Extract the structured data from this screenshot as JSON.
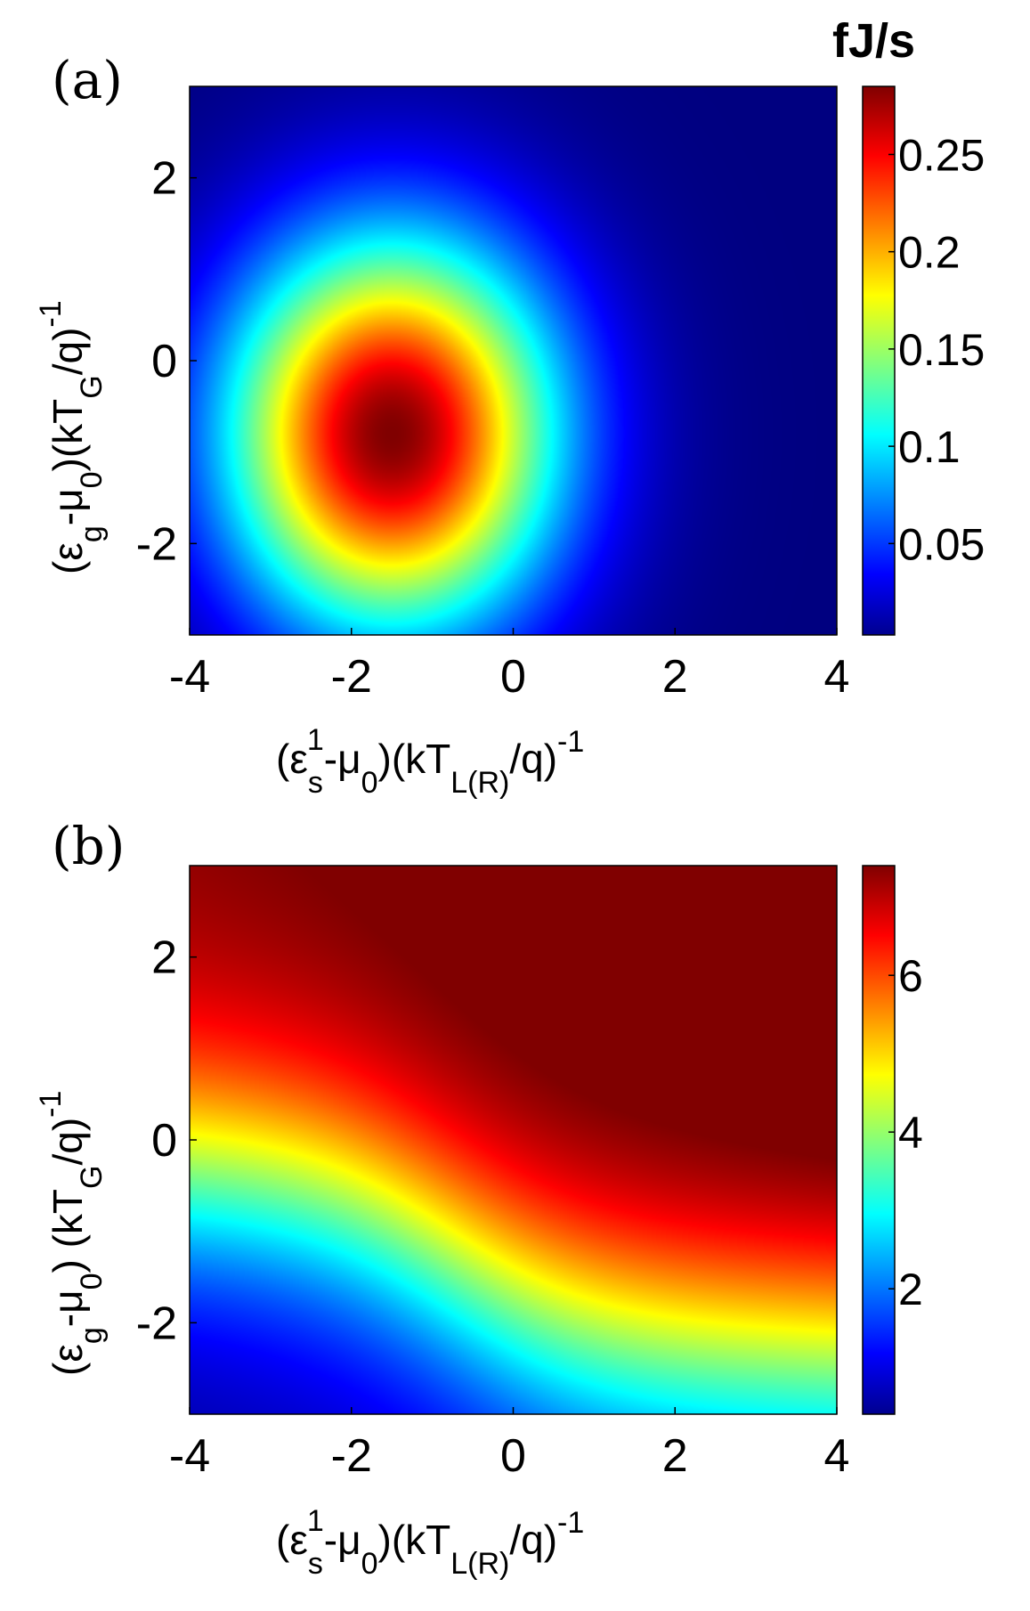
{
  "chart_data": [
    {
      "type": "heatmap",
      "panel_label": "(a)",
      "xlim": [
        -4,
        4
      ],
      "ylim": [
        -3,
        3
      ],
      "x_ticks": [
        -4,
        -2,
        0,
        2,
        4
      ],
      "x_tick_labels": [
        "-4",
        "-2",
        "0",
        "2",
        "4"
      ],
      "y_ticks": [
        2,
        0,
        -2
      ],
      "y_tick_labels": [
        "2",
        "0",
        "-2"
      ],
      "xlabel": "(εs1-μ0)(kTL(R)/q)-1",
      "ylabel": "(εg-μ0)(kTG/q)-1",
      "colorbar": {
        "unit": "fJ/s",
        "range": [
          0.003,
          0.285
        ],
        "ticks": [
          0.05,
          0.1,
          0.15,
          0.2,
          0.25
        ],
        "tick_labels": [
          "0.05",
          "0.1",
          "0.15",
          "0.2",
          "0.25"
        ]
      },
      "field": {
        "description_values": "peak 0.285 at (x=-1.5, y=-0.8), decaying radially to ~0.005 at far right",
        "peak_value": 0.285,
        "peak_x": -1.5,
        "peak_y": -0.8,
        "min_value": 0.003
      },
      "colormap": "jet",
      "grid": false
    },
    {
      "type": "heatmap",
      "panel_label": "(b)",
      "xlim": [
        -4,
        4
      ],
      "ylim": [
        -3,
        3
      ],
      "x_ticks": [
        -4,
        -2,
        0,
        2,
        4
      ],
      "x_tick_labels": [
        "-4",
        "-2",
        "0",
        "2",
        "4"
      ],
      "y_ticks": [
        2,
        0,
        -2
      ],
      "y_tick_labels": [
        "2",
        "0",
        "-2"
      ],
      "xlabel": "(εs1-μ0)(kTL(R)/q)-1",
      "ylabel": "(εg-μ0) (kTG/q)-1",
      "colorbar": {
        "range": [
          0.4,
          7.4
        ],
        "ticks": [
          2,
          4,
          6
        ],
        "tick_labels": [
          "2",
          "4",
          "6"
        ]
      },
      "field": {
        "min_value": 0.5,
        "max_value": 7.4,
        "corner_values": {
          "x-4_y-3": 0.6,
          "x4_y-3": 3.3,
          "x-4_y3": 6.6,
          "x4_y3": 7.4
        },
        "value_at_x-4_y0": 4.6,
        "value_at_x0_y0": 5.9
      },
      "colormap": "jet",
      "grid": false
    }
  ],
  "title_a_unit_color": "#000000"
}
